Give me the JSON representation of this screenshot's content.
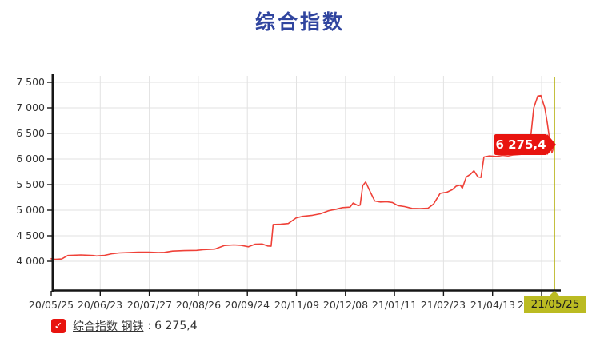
{
  "title": "综合指数",
  "value_tag": {
    "text": "6 275,4"
  },
  "cursor": {
    "label": "21/05/25"
  },
  "legend": {
    "check_glyph": "✓",
    "name": "综合指数 钢铁",
    "separator": ":",
    "value": "6 275,4"
  },
  "colors": {
    "title": "#30459f",
    "line": "#ef4138",
    "tag_bg": "#e8140f",
    "tag_text": "#ffffff",
    "checkbox_bg": "#e8140f",
    "cursor_line": "#b5b110",
    "cursor_label_bg": "#bbbb22",
    "cursor_label_text": "#1c1c1c",
    "grid": "#e2e2e2",
    "axis": "#161616",
    "tick_text": "#333333",
    "legend_text": "#333333"
  },
  "chart_data": {
    "type": "line",
    "title": "综合指数",
    "grid": true,
    "legend_position": "bottom-left",
    "x_axis": {
      "tick_labels": [
        "20/05/25",
        "20/06/23",
        "20/07/27",
        "20/08/26",
        "20/09/24",
        "20/11/09",
        "20/12/08",
        "21/01/11",
        "21/02/23",
        "21/04/13"
      ],
      "last_tick_partial": "2",
      "cursor_label": "21/05/25"
    },
    "y_axis": {
      "tick_values": [
        4000,
        4500,
        5000,
        5500,
        6000,
        6500,
        7000,
        7500
      ],
      "tick_labels": [
        "4 000",
        "4 500",
        "5 000",
        "5 500",
        "6 000",
        "6 500",
        "7 000",
        "7 500"
      ],
      "range": [
        3438,
        7625
      ]
    },
    "series": [
      {
        "name": "综合指数 钢铁",
        "color": "#ef4138",
        "last_value": 6275.4,
        "last_value_label": "6 275,4",
        "points": [
          [
            0,
            4050
          ],
          [
            0.8,
            4038
          ],
          [
            2.1,
            4045
          ],
          [
            3.3,
            4115
          ],
          [
            5.9,
            4125
          ],
          [
            8.3,
            4115
          ],
          [
            9.0,
            4105
          ],
          [
            10.6,
            4118
          ],
          [
            12.2,
            4150
          ],
          [
            13.5,
            4165
          ],
          [
            15.4,
            4170
          ],
          [
            17.3,
            4180
          ],
          [
            19.4,
            4180
          ],
          [
            21.3,
            4170
          ],
          [
            22.5,
            4175
          ],
          [
            24.1,
            4200
          ],
          [
            26.5,
            4210
          ],
          [
            28.9,
            4215
          ],
          [
            30.5,
            4230
          ],
          [
            32.5,
            4240
          ],
          [
            34.4,
            4310
          ],
          [
            36.3,
            4320
          ],
          [
            37.6,
            4315
          ],
          [
            39.2,
            4285
          ],
          [
            40.5,
            4335
          ],
          [
            41.9,
            4340
          ],
          [
            43.0,
            4300
          ],
          [
            43.7,
            4295
          ],
          [
            44.1,
            4720
          ],
          [
            45.6,
            4725
          ],
          [
            47.1,
            4740
          ],
          [
            48.7,
            4850
          ],
          [
            50.0,
            4880
          ],
          [
            51.9,
            4900
          ],
          [
            53.5,
            4930
          ],
          [
            55.1,
            4990
          ],
          [
            56.7,
            5020
          ],
          [
            57.9,
            5050
          ],
          [
            59.4,
            5060
          ],
          [
            60.0,
            5140
          ],
          [
            61.0,
            5090
          ],
          [
            61.4,
            5100
          ],
          [
            61.9,
            5480
          ],
          [
            62.5,
            5550
          ],
          [
            63.5,
            5340
          ],
          [
            64.3,
            5180
          ],
          [
            65.4,
            5160
          ],
          [
            66.7,
            5165
          ],
          [
            67.8,
            5150
          ],
          [
            68.9,
            5090
          ],
          [
            70.2,
            5070
          ],
          [
            71.7,
            5035
          ],
          [
            73.3,
            5030
          ],
          [
            74.9,
            5040
          ],
          [
            76.0,
            5120
          ],
          [
            77.3,
            5330
          ],
          [
            78.6,
            5350
          ],
          [
            79.7,
            5400
          ],
          [
            80.5,
            5470
          ],
          [
            81.3,
            5490
          ],
          [
            81.7,
            5430
          ],
          [
            82.5,
            5650
          ],
          [
            83.3,
            5700
          ],
          [
            84.0,
            5770
          ],
          [
            84.8,
            5650
          ],
          [
            85.4,
            5640
          ],
          [
            86.0,
            6040
          ],
          [
            87.1,
            6060
          ],
          [
            88.4,
            6050
          ],
          [
            89.7,
            6070
          ],
          [
            90.8,
            6060
          ],
          [
            91.9,
            6080
          ],
          [
            93.2,
            6090
          ],
          [
            94.1,
            6100
          ],
          [
            95.1,
            6250
          ],
          [
            95.9,
            7000
          ],
          [
            96.7,
            7230
          ],
          [
            97.3,
            7240
          ],
          [
            98.1,
            7000
          ],
          [
            98.6,
            6700
          ],
          [
            99.1,
            6350
          ],
          [
            99.5,
            6120
          ],
          [
            100,
            6275.4
          ]
        ]
      }
    ]
  }
}
